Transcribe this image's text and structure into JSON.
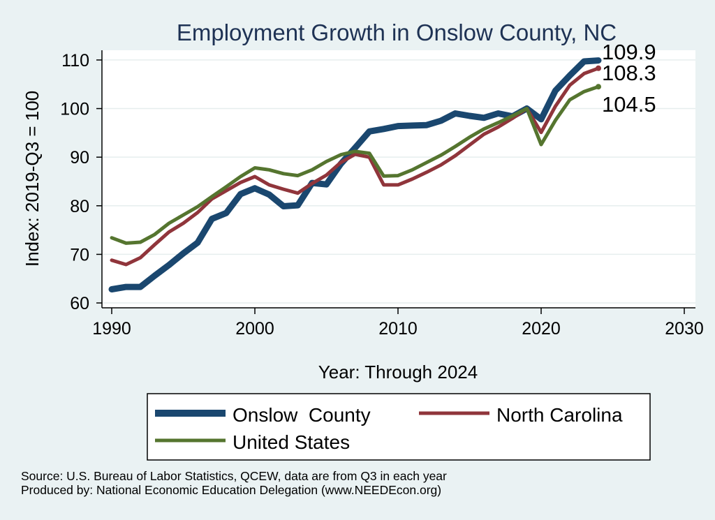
{
  "chart_data": {
    "type": "line",
    "title": "Employment Growth in Onslow County, NC",
    "xlabel": "Year: Through 2024",
    "ylabel": "Index: 2019-Q3 = 100",
    "xlim": [
      1990,
      2030
    ],
    "ylim": [
      59,
      112
    ],
    "xticks": [
      1990,
      2000,
      2010,
      2020,
      2030
    ],
    "yticks": [
      60,
      70,
      80,
      90,
      100,
      110
    ],
    "grid": "horizontal",
    "legend_position": "bottom",
    "x": [
      1990,
      1991,
      1992,
      1993,
      1994,
      1995,
      1996,
      1997,
      1998,
      1999,
      2000,
      2001,
      2002,
      2003,
      2004,
      2005,
      2006,
      2007,
      2008,
      2009,
      2010,
      2011,
      2012,
      2013,
      2014,
      2015,
      2016,
      2017,
      2018,
      2019,
      2020,
      2021,
      2022,
      2023,
      2024
    ],
    "series": [
      {
        "name": "Onslow  County",
        "color": "#1a476f",
        "width": 9,
        "end_label": "109.9",
        "values": [
          62.8,
          63.3,
          63.3,
          65.6,
          67.8,
          70.2,
          72.4,
          77.3,
          78.5,
          82.4,
          83.6,
          82.3,
          79.9,
          80.1,
          84.7,
          84.4,
          88.6,
          91.9,
          95.3,
          95.8,
          96.4,
          96.5,
          96.6,
          97.5,
          99.0,
          98.5,
          98.1,
          99.0,
          98.4,
          100.0,
          97.8,
          103.7,
          106.8,
          109.7,
          109.9
        ]
      },
      {
        "name": "North Carolina",
        "color": "#90353b",
        "width": 5,
        "end_label": "108.3",
        "values": [
          68.8,
          67.9,
          69.3,
          72.0,
          74.6,
          76.4,
          78.6,
          81.4,
          83.1,
          84.8,
          86.0,
          84.3,
          83.4,
          82.6,
          84.6,
          86.3,
          88.9,
          90.6,
          90.0,
          84.3,
          84.3,
          85.5,
          86.9,
          88.4,
          90.3,
          92.5,
          94.7,
          96.2,
          98.0,
          100.0,
          95.1,
          100.5,
          104.8,
          107.2,
          108.3
        ]
      },
      {
        "name": "United States",
        "color": "#55752f",
        "width": 5,
        "end_label": "104.5",
        "values": [
          73.4,
          72.3,
          72.5,
          74.1,
          76.4,
          78.1,
          79.8,
          81.9,
          83.9,
          86.0,
          87.8,
          87.4,
          86.6,
          86.2,
          87.4,
          89.1,
          90.5,
          91.2,
          90.8,
          86.1,
          86.2,
          87.4,
          88.9,
          90.4,
          92.2,
          94.1,
          95.8,
          97.1,
          98.5,
          100.0,
          92.6,
          97.6,
          101.8,
          103.5,
          104.5
        ]
      }
    ],
    "end_labels_order": [
      "109.9",
      "108.3",
      "104.5"
    ]
  },
  "source_lines": [
    "Source: U.S. Bureau of Labor Statistics, QCEW, data are from Q3 in each year",
    "Produced by: National Economic Education Delegation (www.NEEDEcon.org)"
  ]
}
